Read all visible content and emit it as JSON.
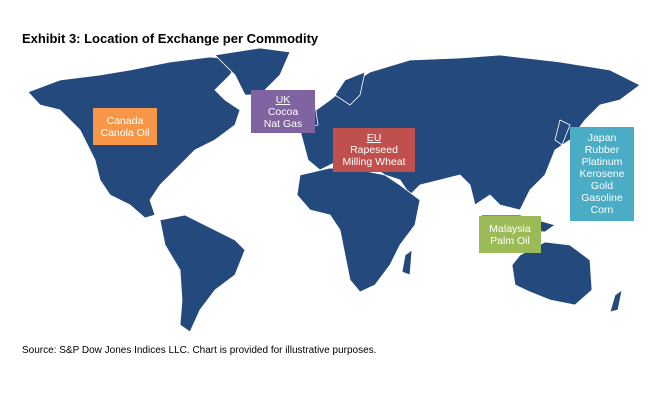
{
  "title": "Exhibit 3: Location of Exchange per Commodity",
  "labels": [
    {
      "region": "Canada",
      "commodities": [
        "Canola Oil"
      ]
    },
    {
      "region": "UK",
      "commodities": [
        "Cocoa",
        "Nat Gas"
      ]
    },
    {
      "region": "EU",
      "commodities": [
        "Rapeseed",
        "Milling Wheat"
      ]
    },
    {
      "region": "Japan",
      "commodities": [
        "Rubber",
        "Platinum",
        "Kerosene",
        "Gold",
        "Gasoline",
        "Corn"
      ]
    },
    {
      "region": "Malaysia",
      "commodities": [
        "Palm Oil"
      ]
    }
  ],
  "source": "Source: S&P Dow Jones Indices LLC. Chart is provided for illustrative purposes."
}
